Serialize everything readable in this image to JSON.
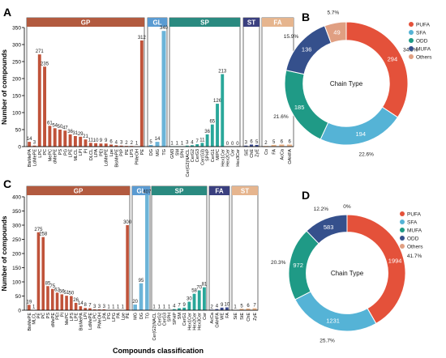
{
  "panel_letters": [
    "A",
    "B",
    "C",
    "D"
  ],
  "x_axis_label": "Compounds classification",
  "chart_data": [
    {
      "panel": "A",
      "type": "bar",
      "ylabel": "Number of compounds",
      "ylim": [
        0,
        350
      ],
      "yticks": [
        0,
        50,
        100,
        150,
        200,
        250,
        300,
        350
      ],
      "groups": [
        {
          "name": "GP",
          "color": "#c0533a",
          "header_color": "#b25a3f",
          "categories": [
            "BisMePA",
            "LdMePE",
            "LPC",
            "PC",
            "MePC",
            "dMePE",
            "PS",
            "PG",
            "LPE",
            "MLCL",
            "LPI",
            "PI",
            "DLCL",
            "LPA",
            "PEt",
            "LdMePE",
            "Lpe",
            "BisMePE",
            "PIP",
            "PE",
            "LPS",
            "PMeOH",
            "PE"
          ],
          "values": [
            14,
            3,
            271,
            235,
            61,
            54,
            50,
            47,
            36,
            31,
            29,
            21,
            11,
            10,
            9,
            9,
            6,
            4,
            3,
            2,
            2,
            1,
            312
          ]
        },
        {
          "name": "GL",
          "color": "#6cb4d8",
          "header_color": "#5a9bd2",
          "categories": [
            "DG",
            "MG",
            "TG"
          ],
          "values": [
            5,
            14,
            340
          ]
        },
        {
          "name": "SP",
          "color": "#2aa79a",
          "header_color": "#2a8a80",
          "categories": [
            "GM3",
            "SM",
            "SPH",
            "Cer(G2)NACL",
            "CerG2",
            "CerG3",
            "Cer(G3)",
            "SPHP",
            "CerG1",
            "MIPC",
            "Hex1Cer",
            "Hex2Cer",
            "Cer",
            "Hex3Cer"
          ],
          "values": [
            1,
            1,
            1,
            3,
            4,
            7,
            11,
            36,
            65,
            126,
            213,
            0,
            0,
            0
          ]
        },
        {
          "name": "ST",
          "color": "#3b4a8f",
          "header_color": "#3a3f7f",
          "categories": [
            "SiE",
            "ChE",
            "ZyE"
          ],
          "values": [
            3,
            6,
            5
          ]
        },
        {
          "name": "FA",
          "color": "#e9b48a",
          "header_color": "#e6b58e",
          "categories": [
            "Co",
            "FA",
            "AcCa",
            "OAHFA"
          ],
          "values": [
            2,
            5,
            6,
            6
          ]
        }
      ]
    },
    {
      "panel": "B",
      "type": "pie",
      "title": "Chain Type",
      "slices": [
        {
          "label": "PUFA",
          "value": 294,
          "percent": "34.3%",
          "color": "#e4513a"
        },
        {
          "label": "SFA",
          "value": 194,
          "percent": "22.6%",
          "color": "#55b3d6"
        },
        {
          "label": "ODD",
          "value": 185,
          "percent": "21.6%",
          "color": "#1f9a86"
        },
        {
          "label": "MUFA",
          "value": 136,
          "percent": "15.9%",
          "color": "#35508c"
        },
        {
          "label": "Others",
          "value": 49,
          "percent": "5.7%",
          "color": "#e09f82"
        }
      ],
      "legend": [
        "PUFA",
        "SFA",
        "ODD",
        "MUFA",
        "Others"
      ]
    },
    {
      "panel": "C",
      "type": "bar",
      "ylabel": "Number of compounds",
      "xlabel": "Compounds classification",
      "ylim": [
        0,
        400
      ],
      "yticks": [
        0,
        50,
        100,
        150,
        200,
        250,
        300,
        350,
        400
      ],
      "groups": [
        {
          "name": "GP",
          "color": "#c0533a",
          "header_color": "#b25a3f",
          "categories": [
            "BisMePE",
            "MLCL",
            "PE",
            "PC",
            "PS",
            "dMePE",
            "PEt",
            "PI",
            "MePC",
            "LPS",
            "LPE",
            "BisMePA",
            "LPI",
            "LdMePE",
            "LPC",
            "PMeOH",
            "LPA",
            "PG",
            "LPG",
            "PA",
            "Lpe",
            "PE"
          ],
          "values": [
            19,
            1,
            275,
            258,
            85,
            75,
            62,
            56,
            51,
            50,
            26,
            14,
            8,
            7,
            3,
            3,
            3,
            1,
            1,
            1,
            1,
            300
          ]
        },
        {
          "name": "GL",
          "color": "#6cb4d8",
          "header_color": "#5a9bd2",
          "categories": [
            "MG",
            "DG",
            "TG"
          ],
          "values": [
            20,
            95,
            407
          ]
        },
        {
          "name": "SP",
          "color": "#2aa79a",
          "header_color": "#2a8a80",
          "categories": [
            "Cer(G2)NACL",
            "CerG2",
            "CerG3",
            "SPH",
            "SPHP",
            "SM",
            "CerG1",
            "Hex1Cer",
            "Hex2Cer",
            "Hex3Cer",
            "Cer"
          ],
          "values": [
            1,
            1,
            1,
            1,
            4,
            7,
            9,
            30,
            58,
            70,
            81
          ]
        },
        {
          "name": "FA",
          "color": "#3b4a8f",
          "header_color": "#3a3f7f",
          "categories": [
            "AcCa",
            "OAHFA",
            "WE",
            "FA"
          ],
          "values": [
            2,
            4,
            9,
            10
          ]
        },
        {
          "name": "ST",
          "color": "#e9b48a",
          "header_color": "#e6b58e",
          "categories": [
            "SiE",
            "StE",
            "ChE",
            "ZyE"
          ],
          "values": [
            1,
            5,
            6,
            7
          ]
        }
      ]
    },
    {
      "panel": "D",
      "type": "pie",
      "title": "Chain Type",
      "slices": [
        {
          "label": "PUFA",
          "value": 1994,
          "percent": "41.7%",
          "color": "#e4513a"
        },
        {
          "label": "SFA",
          "value": 1231,
          "percent": "25.7%",
          "color": "#55b3d6"
        },
        {
          "label": "MUFA",
          "value": 972,
          "percent": "20.3%",
          "color": "#1f9a86"
        },
        {
          "label": "ODD",
          "value": 583,
          "percent": "12.2%",
          "color": "#35508c"
        },
        {
          "label": "Others",
          "value": 0,
          "percent": "0%",
          "color": "#e09f82"
        }
      ],
      "legend": [
        "PUFA",
        "SFA",
        "MUFA",
        "ODD",
        "Others"
      ]
    }
  ]
}
